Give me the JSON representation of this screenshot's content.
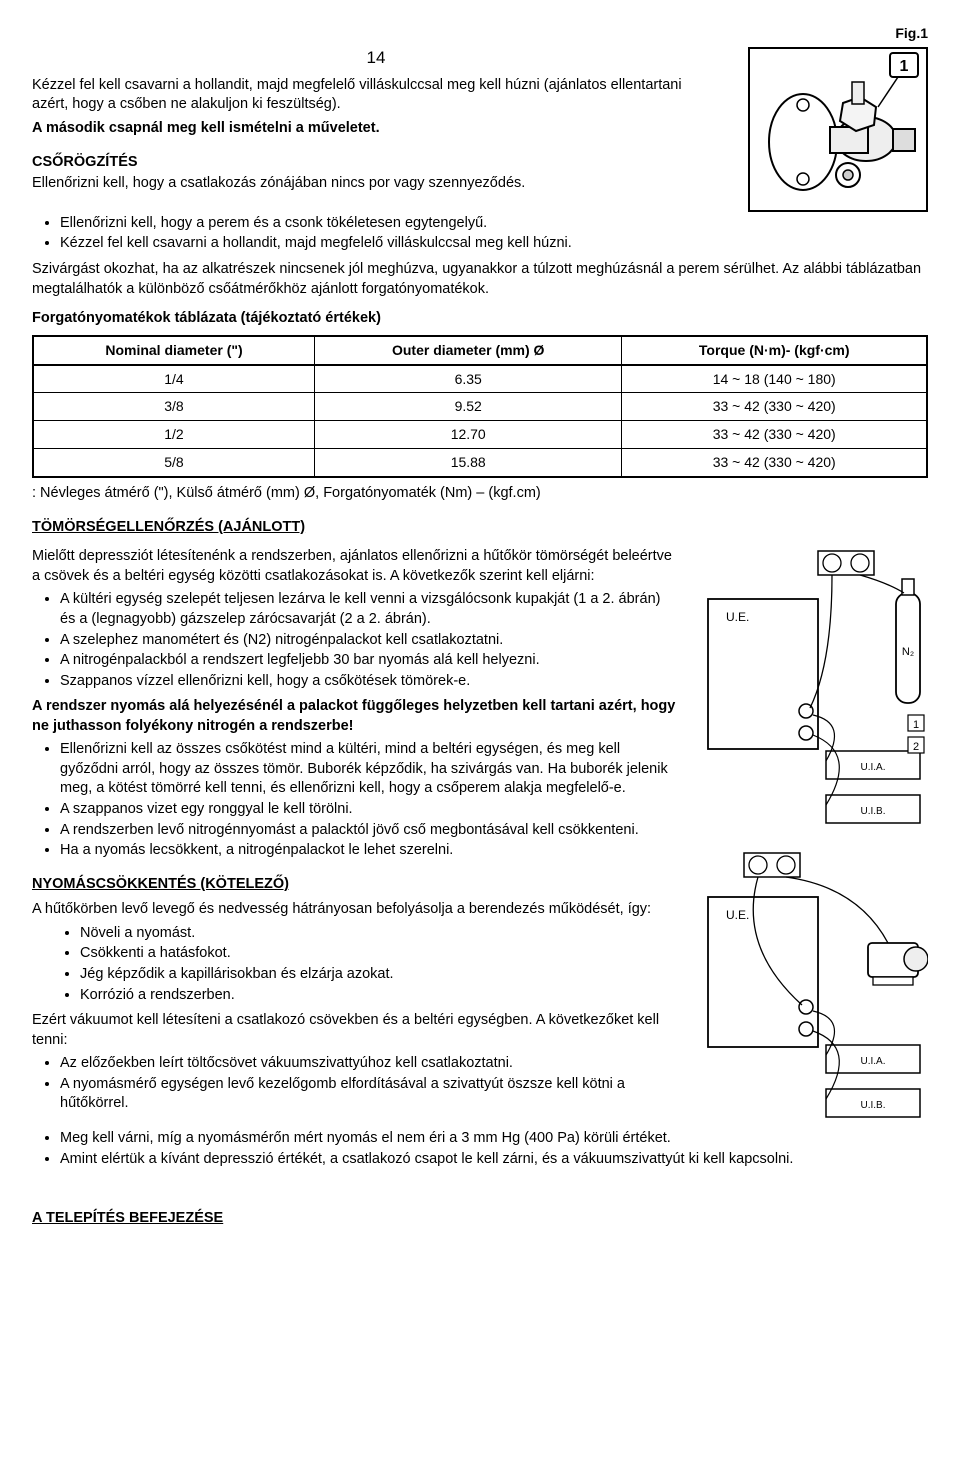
{
  "figLabel": "Fig.1",
  "pageNumber": "14",
  "intro": {
    "p1": "Kézzel fel kell csavarni a hollandit, majd megfelelő villáskulccsal meg kell húzni (ajánlatos ellentartani azért, hogy a csőben ne alakuljon ki feszültség).",
    "p2": "A második csapnál meg kell ismételni a műveletet."
  },
  "csorogz": {
    "heading": "CSŐRÖGZÍTÉS",
    "lead": "Ellenőrizni kell, hogy a csatlakozás zónájában nincs por vagy szennyeződés.",
    "bullets": [
      "Ellenőrizni kell, hogy a perem és a csonk tökéletesen egytengelyű.",
      "Kézzel fel kell csavarni a hollandit, majd megfelelő villáskulccsal meg kell húzni."
    ],
    "after": "Szivárgást okozhat, ha az alkatrészek nincsenek jól meghúzva, ugyanakkor a túlzott meghúzásnál a perem sérülhet. Az alábbi táblázatban megtalálhatók a különböző csőátmérőkhöz ajánlott forgató­nyomatékok."
  },
  "torqueTable": {
    "title": "Forgatónyomatékok táblázata (tájékoztató értékek)",
    "headers": [
      "Nominal diameter (\")",
      "Outer diameter (mm) Ø",
      "Torque (N·m)- (kgf·cm)"
    ],
    "rows": [
      [
        "1/4",
        "6.35",
        "14 ~ 18 (140 ~ 180)"
      ],
      [
        "3/8",
        "9.52",
        "33 ~ 42 (330 ~ 420)"
      ],
      [
        "1/2",
        "12.70",
        "33 ~ 42 (330 ~ 420)"
      ],
      [
        "5/8",
        "15.88",
        "33 ~ 42 (330 ~ 420)"
      ]
    ],
    "legend": ": Névleges átmérő (\"), Külső átmérő (mm) Ø, Forgatónyomaték (Nm) – (kgf.cm)"
  },
  "leakCheck": {
    "heading": "TÖMÖRSÉGELLENŐRZÉS (AJÁNLOTT)",
    "lead": "Mielőtt depressziót létesítenénk a rendszerben, ajánlatos ellenőrizni a hűtőkör tömörségét beleértve a csövek és a beltéri egység közötti csatlakozásokat is. A következők szerint kell eljárni:",
    "bullets1": [
      "A kültéri egység szelepét teljesen lezárva le kell venni a vizsgálócsonk ku­pakját (1 a 2. ábrán) és a (legnagyobb) gázszelep zárócsavarját (2 a 2. áb­rán).",
      "A szelephez manométert és (N2) nitrogénpalackot kell csatlakoztatni.",
      "A nitrogénpalackból a rendszert legfeljebb 30 bar nyomás alá kell helyezni.",
      "Szappanos vízzel ellenőrizni kell, hogy a csőkötések tömörek-e."
    ],
    "warn": "A rendszer nyomás alá helyezésénél a palackot függőleges helyzetben kell tartani azért, hogy ne juthasson folyékony nitrogén a rendszerbe!",
    "bullets2": [
      "Ellenőrizni kell az összes csőkötést mind a kültéri, mind a beltéri egységen, és meg kell győződni arról, hogy az összes tömör. Buborék képződik, ha szivárgás van. Ha buborék jelenik meg, a kötést tömörré kell tenni, és ellen­őrizni kell, hogy a csőperem alakja megfelelő-e.",
      "A szappanos vizet egy ronggyal le kell törölni.",
      "A rendszerben levő nitrogénnyomást a palacktól jövő cső megbontásával kell csökkenteni.",
      "Ha a nyomás lecsökkent, a nitrogénpalackot le lehet szerelni."
    ]
  },
  "depress": {
    "heading": "NYOMÁSCSÖKKENTÉS (KÖTELEZŐ)",
    "lead": "A hűtőkörben levő levegő és nedvesség hátrányosan befolyásolja a berende­zés működését, így:",
    "bullets1": [
      "Növeli a nyomást.",
      "Csökkenti a hatásfokot.",
      "Jég képződik a kapillárisokban és elzárja azokat.",
      "Korrózió a rendszerben."
    ],
    "mid": "Ezért vákuumot kell létesíteni a csatlakozó csövekben és a beltéri egységben. A következőket kell tenni:",
    "bullets2": [
      "Az előzőekben leírt töltőcsövet vákuumszivattyúhoz kell csatlakoztatni.",
      "A nyomásmérő egységen levő kezelőgomb elfordításával a szivattyút ösz­sze kell kötni a hűtőkörrel.",
      "Meg kell várni, míg a nyomásmérőn mért nyomás el nem éri a 3 mm Hg (400 Pa) körüli értéket.",
      "Amint elértük a kívánt depresszió értékét, a csatlakozó csapot le kell zárni, és a vákuumszivattyút ki kell kapcsolni."
    ]
  },
  "bottomHeading": "A TELEPÍTÉS BEFEJEZÉSE",
  "figureLabels": {
    "ue": "U.E.",
    "uia": "U.I.A.",
    "uib": "U.I.B.",
    "n2": "N₂",
    "c1": "1",
    "c2": "2"
  }
}
